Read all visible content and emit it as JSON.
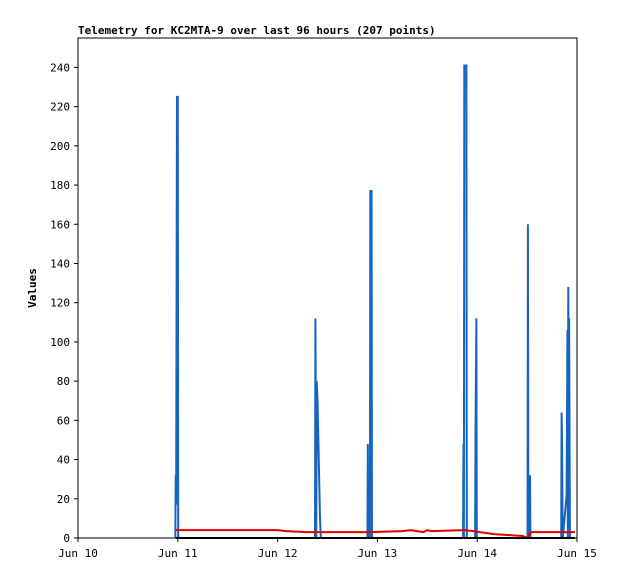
{
  "chart_data": {
    "type": "line",
    "title": "Telemetry for KC2MTA-9 over last 96 hours (207 points)",
    "y_label": "Values",
    "xlim": [
      0,
      120
    ],
    "xticks": [
      {
        "value": 0,
        "label": "Jun 10"
      },
      {
        "value": 24,
        "label": "Jun 11"
      },
      {
        "value": 48,
        "label": "Jun 12"
      },
      {
        "value": 72,
        "label": "Jun 13"
      },
      {
        "value": 96,
        "label": "Jun 14"
      },
      {
        "value": 120,
        "label": "Jun 15"
      }
    ],
    "ylim": [
      0,
      255
    ],
    "yticks": [
      0,
      20,
      40,
      60,
      80,
      100,
      120,
      140,
      160,
      180,
      200,
      220,
      240
    ],
    "series": [
      {
        "color": "#1565c0",
        "x": [
          23.4,
          23.5,
          23.6,
          23.8,
          24.0,
          24.1,
          57.0,
          57.1,
          57.3,
          57.4,
          57.6,
          57.8,
          58.0,
          58.2,
          58.4,
          69.6,
          69.7,
          69.8,
          69.9,
          70.0,
          70.2,
          70.3,
          70.6,
          70.7,
          92.6,
          92.7,
          92.8,
          92.9,
          93.4,
          93.5,
          95.5,
          95.6,
          95.8,
          95.9,
          108.1,
          108.2,
          108.3,
          108.5,
          108.7,
          108.8,
          116.2,
          116.3,
          116.4,
          116.5,
          116.6,
          117.5,
          117.7,
          117.8,
          117.9,
          118.0,
          118.1,
          118.3,
          119.5
        ],
        "values": [
          0,
          32,
          17,
          225,
          225,
          0,
          0,
          112,
          0,
          80,
          70,
          50,
          30,
          10,
          0,
          0,
          48,
          0,
          17,
          32,
          0,
          177,
          177,
          0,
          0,
          48,
          0,
          241,
          241,
          0,
          0,
          56,
          112,
          0,
          0,
          160,
          0,
          24,
          32,
          0,
          0,
          64,
          48,
          16,
          0,
          22,
          106,
          0,
          128,
          64,
          112,
          0,
          0
        ]
      },
      {
        "color": "#e00000",
        "x": [
          23.5,
          48,
          50,
          55,
          70,
          78,
          80,
          83,
          84,
          85,
          93,
          95,
          100,
          107,
          108,
          109,
          119.5
        ],
        "values": [
          4,
          4,
          3.5,
          3,
          3,
          3.5,
          4,
          3,
          4,
          3.5,
          4,
          3.5,
          2,
          1,
          0,
          3,
          3
        ]
      },
      {
        "color": "#000000",
        "x": [
          23.5,
          119.5
        ],
        "values": [
          0,
          0
        ]
      }
    ]
  }
}
